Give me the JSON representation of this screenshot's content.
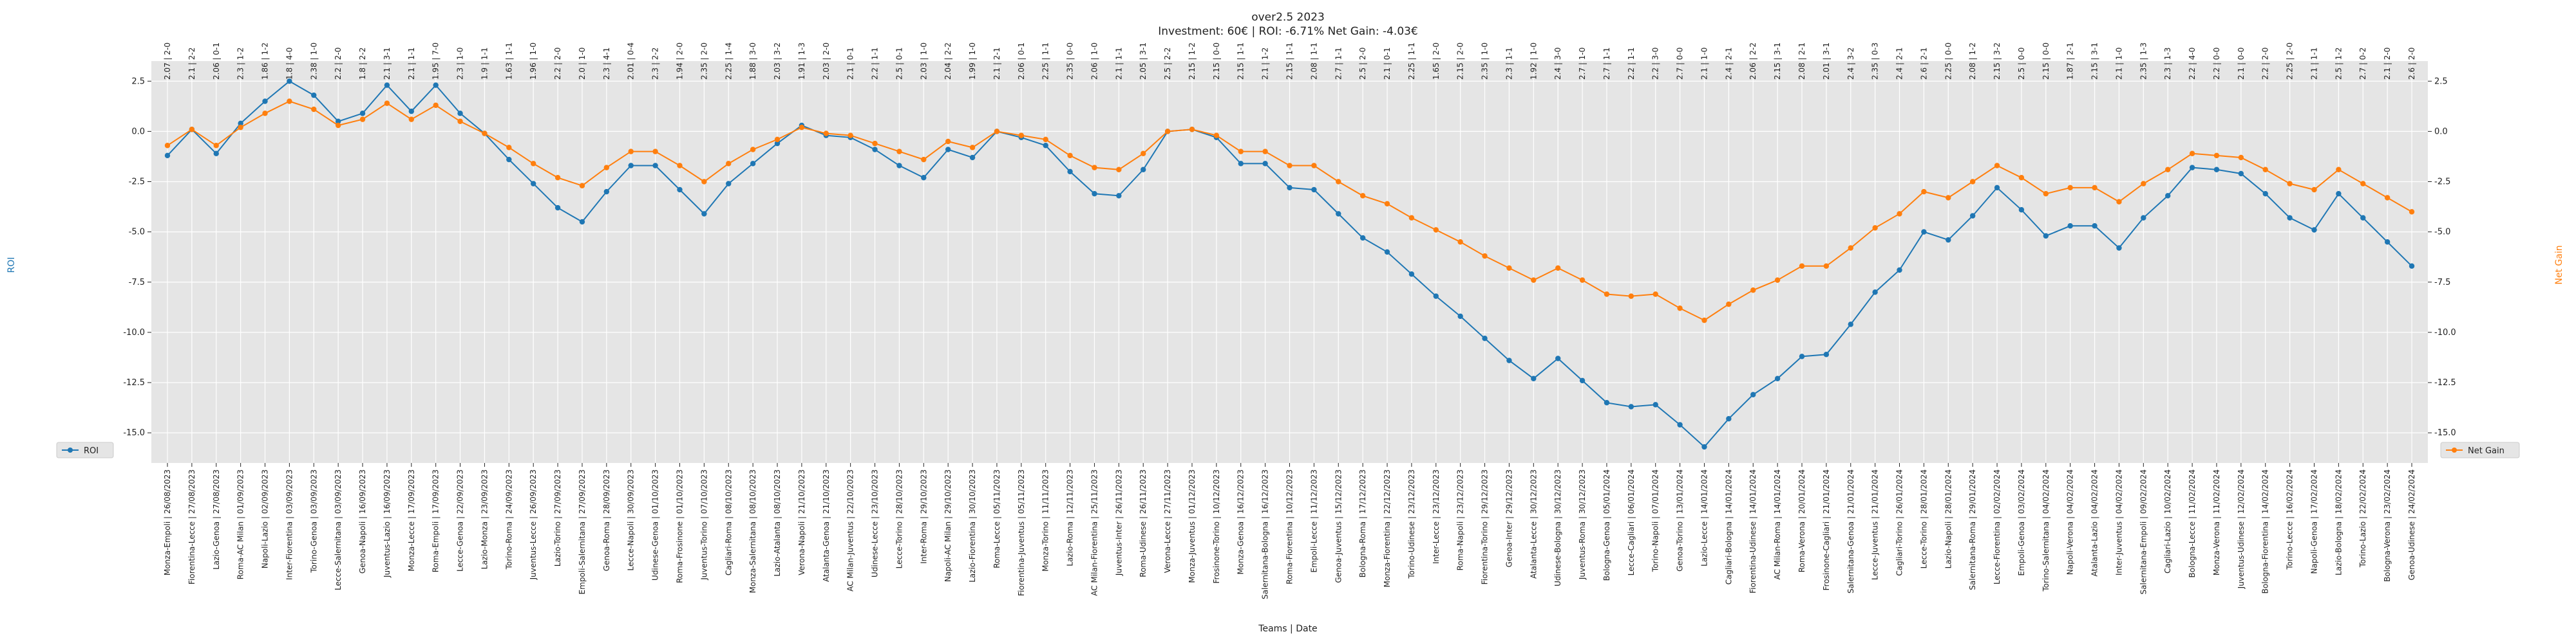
{
  "chart_data": {
    "type": "line",
    "title": "over2.5 2023",
    "subtitle": "Investment: 60€ | ROI: -6.71% Net Gain: -4.03€",
    "xlabel": "Teams | Date",
    "ylabel_left": "ROI",
    "ylabel_right": "Net Gain",
    "ylim": [
      -16.5,
      3.5
    ],
    "yticks": [
      2.5,
      0.0,
      -2.5,
      -5.0,
      -7.5,
      -10.0,
      -12.5,
      -15.0
    ],
    "grid": true,
    "legend_left": "lower-left",
    "legend_right": "lower-right",
    "colors": {
      "roi": "#1f77b4",
      "net_gain": "#ff7f0e",
      "plot_bg": "#e5e5e5",
      "grid": "#ffffff"
    },
    "categories": [
      "Monza-Empoli | 26/08/2023",
      "Fiorentina-Lecce | 27/08/2023",
      "Lazio-Genoa | 27/08/2023",
      "Roma-AC Milan | 01/09/2023",
      "Napoli-Lazio | 02/09/2023",
      "Inter-Fiorentina | 03/09/2023",
      "Torino-Genoa | 03/09/2023",
      "Lecce-Salernitana | 03/09/2023",
      "Genoa-Napoli | 16/09/2023",
      "Juventus-Lazio | 16/09/2023",
      "Monza-Lecce | 17/09/2023",
      "Roma-Empoli | 17/09/2023",
      "Lecce-Genoa | 22/09/2023",
      "Lazio-Monza | 23/09/2023",
      "Torino-Roma | 24/09/2023",
      "Juventus-Lecce | 26/09/2023",
      "Lazio-Torino | 27/09/2023",
      "Empoli-Salernitana | 27/09/2023",
      "Genoa-Roma | 28/09/2023",
      "Lecce-Napoli | 30/09/2023",
      "Udinese-Genoa | 01/10/2023",
      "Roma-Frosinone | 01/10/2023",
      "Juventus-Torino | 07/10/2023",
      "Cagliari-Roma | 08/10/2023",
      "Monza-Salernitana | 08/10/2023",
      "Lazio-Atalanta | 08/10/2023",
      "Verona-Napoli | 21/10/2023",
      "Atalanta-Genoa | 21/10/2023",
      "AC Milan-Juventus | 22/10/2023",
      "Udinese-Lecce | 23/10/2023",
      "Lecce-Torino | 28/10/2023",
      "Inter-Roma | 29/10/2023",
      "Napoli-AC Milan | 29/10/2023",
      "Lazio-Fiorentina | 30/10/2023",
      "Roma-Lecce | 05/11/2023",
      "Fiorentina-Juventus | 05/11/2023",
      "Monza-Torino | 11/11/2023",
      "Lazio-Roma | 12/11/2023",
      "AC Milan-Fiorentina | 25/11/2023",
      "Juventus-Inter | 26/11/2023",
      "Roma-Udinese | 26/11/2023",
      "Verona-Lecce | 27/11/2023",
      "Monza-Juventus | 01/12/2023",
      "Frosinone-Torino | 10/12/2023",
      "Monza-Genoa | 16/12/2023",
      "Salernitana-Bologna | 16/12/2023",
      "Roma-Fiorentina | 10/12/2023",
      "Empoli-Lecce | 11/12/2023",
      "Genoa-Juventus | 15/12/2023",
      "Bologna-Roma | 17/12/2023",
      "Monza-Fiorentina | 22/12/2023",
      "Torino-Udinese | 23/12/2023",
      "Inter-Lecce | 23/12/2023",
      "Roma-Napoli | 23/12/2023",
      "Fiorentina-Torino | 29/12/2023",
      "Genoa-Inter | 29/12/2023",
      "Atalanta-Lecce | 30/12/2023",
      "Udinese-Bologna | 30/12/2023",
      "Juventus-Roma | 30/12/2023",
      "Bologna-Genoa | 05/01/2024",
      "Lecce-Cagliari | 06/01/2024",
      "Torino-Napoli | 07/01/2024",
      "Genoa-Torino | 13/01/2024",
      "Lazio-Lecce | 14/01/2024",
      "Cagliari-Bologna | 14/01/2024",
      "Fiorentina-Udinese | 14/01/2024",
      "AC Milan-Roma | 14/01/2024",
      "Roma-Verona | 20/01/2024",
      "Frosinone-Cagliari | 21/01/2024",
      "Salernitana-Genoa | 21/01/2024",
      "Lecce-Juventus | 21/01/2024",
      "Cagliari-Torino | 26/01/2024",
      "Lecce-Torino | 28/01/2024",
      "Lazio-Napoli | 28/01/2024",
      "Salernitana-Roma | 29/01/2024",
      "Lecce-Fiorentina | 02/02/2024",
      "Empoli-Genoa | 03/02/2024",
      "Torino-Salernitana | 04/02/2024",
      "Napoli-Verona | 04/02/2024",
      "Atalanta-Lazio | 04/02/2024",
      "Inter-Juventus | 04/02/2024",
      "Salernitana-Empoli | 09/02/2024",
      "Cagliari-Lazio | 10/02/2024",
      "Bologna-Lecce | 11/02/2024",
      "Monza-Verona | 11/02/2024",
      "Juventus-Udinese | 12/02/2024",
      "Bologna-Fiorentina | 14/02/2024",
      "Torino-Lecce | 16/02/2024",
      "Napoli-Genoa | 17/02/2024",
      "Lazio-Bologna | 18/02/2024",
      "Torino-Lazio | 22/02/2024",
      "Bologna-Verona | 23/02/2024",
      "Genoa-Udinese | 24/02/2024"
    ],
    "annotations": [
      "2.07 | 2-0",
      "2.1 | 2-2",
      "2.06 | 0-1",
      "2.3 | 1-2",
      "1.86 | 1-2",
      "1.8 | 4-0",
      "2.38 | 1-0",
      "2.2 | 2-0",
      "1.8 | 2-2",
      "2.1 | 3-1",
      "2.1 | 1-1",
      "1.95 | 7-0",
      "2.3 | 1-0",
      "1.9 | 1-1",
      "1.63 | 1-1",
      "1.96 | 1-0",
      "2.2 | 2-0",
      "2.0 | 1-0",
      "2.3 | 4-1",
      "2.01 | 0-4",
      "2.3 | 2-2",
      "1.94 | 2-0",
      "2.35 | 2-0",
      "2.25 | 1-4",
      "1.88 | 3-0",
      "2.03 | 3-2",
      "1.91 | 1-3",
      "2.03 | 2-0",
      "2.1 | 0-1",
      "2.2 | 1-1",
      "2.5 | 0-1",
      "2.03 | 1-0",
      "2.04 | 2-2",
      "1.99 | 1-0",
      "2.1 | 2-1",
      "2.06 | 0-1",
      "2.25 | 1-1",
      "2.35 | 0-0",
      "2.06 | 1-0",
      "2.1 | 1-1",
      "2.05 | 3-1",
      "2.5 | 2-2",
      "2.15 | 1-2",
      "2.15 | 0-0",
      "2.15 | 1-1",
      "2.1 | 1-2",
      "2.15 | 1-1",
      "2.08 | 1-1",
      "2.7 | 1-1",
      "2.5 | 2-0",
      "2.1 | 0-1",
      "2.25 | 1-1",
      "1.65 | 2-0",
      "2.15 | 2-0",
      "2.35 | 1-0",
      "2.3 | 1-1",
      "1.92 | 1-0",
      "2.4 | 3-0",
      "2.7 | 1-0",
      "2.7 | 1-1",
      "2.2 | 1-1",
      "2.2 | 3-0",
      "2.7 | 0-0",
      "2.1 | 1-0",
      "2.4 | 2-1",
      "2.06 | 2-2",
      "2.15 | 3-1",
      "2.08 | 2-1",
      "2.01 | 3-1",
      "2.4 | 3-2",
      "2.35 | 0-3",
      "2.4 | 2-1",
      "2.6 | 2-1",
      "2.25 | 0-0",
      "2.08 | 1-2",
      "2.15 | 3-2",
      "2.5 | 0-0",
      "2.15 | 0-0",
      "1.87 | 2-1",
      "2.15 | 3-1",
      "2.1 | 1-0",
      "2.35 | 1-3",
      "2.3 | 1-3",
      "2.2 | 4-0",
      "2.2 | 0-0",
      "2.1 | 0-0",
      "2.2 | 2-0",
      "2.25 | 2-0",
      "2.1 | 1-1",
      "2.5 | 1-2",
      "2.7 | 0-2",
      "2.1 | 2-0",
      "2.6 | 2-0"
    ],
    "series": [
      {
        "name": "ROI",
        "axis": "left",
        "values": [
          -1.2,
          0.1,
          -1.1,
          0.4,
          1.5,
          2.5,
          1.8,
          0.5,
          0.9,
          2.3,
          1.0,
          2.3,
          0.9,
          -0.1,
          -1.4,
          -2.6,
          -3.8,
          -4.5,
          -3.0,
          -1.7,
          -1.7,
          -2.9,
          -4.1,
          -2.6,
          -1.6,
          -0.6,
          0.3,
          -0.2,
          -0.3,
          -0.9,
          -1.7,
          -2.3,
          -0.9,
          -1.3,
          0.0,
          -0.3,
          -0.7,
          -2.0,
          -3.1,
          -3.2,
          -1.9,
          0.0,
          0.1,
          -0.3,
          -1.6,
          -1.6,
          -2.8,
          -2.9,
          -4.1,
          -5.3,
          -6.0,
          -7.1,
          -8.2,
          -9.2,
          -10.3,
          -11.4,
          -12.3,
          -11.3,
          -12.4,
          -13.5,
          -13.7,
          -13.6,
          -14.6,
          -15.7,
          -14.3,
          -13.1,
          -12.3,
          -11.2,
          -11.1,
          -9.6,
          -8.0,
          -6.9,
          -5.0,
          -5.4,
          -4.2,
          -2.8,
          -3.9,
          -5.2,
          -4.7,
          -4.7,
          -5.8,
          -4.3,
          -3.2,
          -1.8,
          -1.9,
          -2.1,
          -3.1,
          -4.3,
          -4.9,
          -3.1,
          -4.3,
          -5.5,
          -6.7
        ]
      },
      {
        "name": "Net Gain",
        "axis": "right",
        "values": [
          -0.7,
          0.1,
          -0.7,
          0.2,
          0.9,
          1.5,
          1.1,
          0.3,
          0.6,
          1.4,
          0.6,
          1.3,
          0.5,
          -0.1,
          -0.8,
          -1.6,
          -2.3,
          -2.7,
          -1.8,
          -1.0,
          -1.0,
          -1.7,
          -2.5,
          -1.6,
          -0.9,
          -0.4,
          0.2,
          -0.1,
          -0.2,
          -0.6,
          -1.0,
          -1.4,
          -0.5,
          -0.8,
          0.0,
          -0.2,
          -0.4,
          -1.2,
          -1.8,
          -1.9,
          -1.1,
          0.0,
          0.1,
          -0.2,
          -1.0,
          -1.0,
          -1.7,
          -1.7,
          -2.5,
          -3.2,
          -3.6,
          -4.3,
          -4.9,
          -5.5,
          -6.2,
          -6.8,
          -7.4,
          -6.8,
          -7.4,
          -8.1,
          -8.2,
          -8.1,
          -8.8,
          -9.4,
          -8.6,
          -7.9,
          -7.4,
          -6.7,
          -6.7,
          -5.8,
          -4.8,
          -4.1,
          -3.0,
          -3.3,
          -2.5,
          -1.7,
          -2.3,
          -3.1,
          -2.8,
          -2.8,
          -3.5,
          -2.6,
          -1.9,
          -1.1,
          -1.2,
          -1.3,
          -1.9,
          -2.6,
          -2.9,
          -1.9,
          -2.6,
          -3.3,
          -4.0
        ]
      }
    ]
  }
}
